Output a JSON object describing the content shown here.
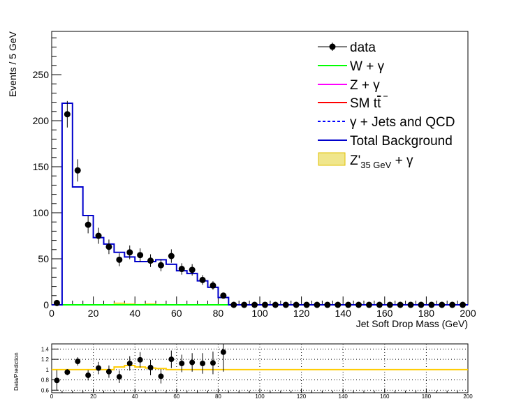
{
  "chart_data": [
    {
      "type": "histogram",
      "xlabel": "Jet Soft Drop Mass (GeV)",
      "ylabel": "Events / 5 GeV",
      "xlim": [
        0,
        200
      ],
      "ylim": [
        0,
        297
      ],
      "x_ticks": [
        0,
        20,
        40,
        60,
        80,
        100,
        120,
        140,
        160,
        180,
        200
      ],
      "y_ticks": [
        0,
        50,
        100,
        150,
        200,
        250
      ],
      "legend_position": "top-right",
      "colors": {
        "data": "#000000",
        "w_gamma": "#00ff00",
        "z_gamma": "#ff00ff",
        "sm_ttbar": "#ff0000",
        "gamma_jets_qcd": "#0000ff",
        "total_background": "#0000cc",
        "signal_fill": "#f0e68c",
        "signal_line": "#ffcc00"
      },
      "legend": {
        "data": "data",
        "w_gamma": "W + γ",
        "z_gamma": "Z + γ",
        "sm_tt": "SM t",
        "gamma_jets_qcd": "γ + Jets and QCD",
        "total_background": "Total Background",
        "signal_main": "Z'",
        "signal_sub": "35 GeV",
        "signal_tail": " + γ"
      },
      "bin_edges": [
        0,
        5,
        10,
        15,
        20,
        25,
        30,
        35,
        40,
        45,
        50,
        55,
        60,
        65,
        70,
        75,
        80,
        85,
        90,
        95,
        100,
        105,
        110,
        115,
        120,
        125,
        130,
        135,
        140,
        145,
        150,
        155,
        160,
        165,
        170,
        175,
        180,
        185,
        190,
        195,
        200
      ],
      "series": [
        {
          "name": "data",
          "style": "points",
          "x": [
            2.5,
            7.5,
            12.5,
            17.5,
            22.5,
            27.5,
            32.5,
            37.5,
            42.5,
            47.5,
            52.5,
            57.5,
            62.5,
            67.5,
            72.5,
            77.5,
            82.5,
            87.5,
            92.5,
            97.5,
            102.5,
            107.5,
            112.5,
            117.5,
            122.5,
            127.5,
            132.5,
            137.5,
            142.5,
            147.5,
            152.5,
            157.5,
            162.5,
            167.5,
            172.5,
            177.5,
            182.5,
            187.5,
            192.5,
            197.5
          ],
          "values": [
            2,
            207,
            146,
            87,
            75,
            63,
            49,
            57,
            54,
            48,
            43,
            53,
            39,
            38,
            27,
            21,
            10,
            0,
            0,
            0,
            0,
            0,
            0,
            0,
            0,
            0,
            0,
            0,
            0,
            0,
            0,
            0,
            0,
            0,
            0,
            0,
            0,
            0,
            0,
            0
          ],
          "errors": [
            1.4,
            14.4,
            12.1,
            9.3,
            8.7,
            7.9,
            7.0,
            7.5,
            7.3,
            6.9,
            6.6,
            7.3,
            6.2,
            6.2,
            5.2,
            4.6,
            3.2,
            0,
            0,
            0,
            0,
            0,
            0,
            0,
            0,
            0,
            0,
            0,
            0,
            0,
            0,
            0,
            0,
            0,
            0,
            0,
            0,
            0,
            0,
            0
          ]
        },
        {
          "name": "Total Background",
          "style": "step",
          "values": [
            0,
            219,
            128,
            97,
            73,
            66,
            57,
            52,
            47,
            47,
            49,
            44,
            37,
            34,
            26,
            19,
            8,
            0,
            0,
            0,
            0,
            0,
            0,
            0,
            0,
            0,
            0,
            0,
            0,
            0,
            0,
            0,
            0,
            0,
            0,
            0,
            0,
            0,
            0,
            0
          ]
        },
        {
          "name": "W + γ",
          "style": "step",
          "values": [
            0,
            0,
            0,
            0,
            0,
            0,
            0,
            0,
            0,
            0,
            0,
            0,
            0,
            0,
            0,
            0,
            0,
            0,
            0,
            0,
            0,
            0,
            0,
            0,
            0,
            0,
            0,
            0,
            0,
            0,
            0,
            0,
            0,
            0,
            0,
            0,
            0,
            0,
            0,
            0
          ]
        },
        {
          "name": "Z' 35 GeV + γ",
          "style": "filled-step",
          "values": [
            0,
            0,
            0,
            0,
            0,
            0,
            2,
            1,
            0.5,
            1,
            0.5,
            0,
            0,
            0,
            0,
            0,
            0,
            0,
            0,
            0,
            0,
            0,
            0,
            0,
            0,
            0,
            0,
            0,
            0,
            0,
            0,
            0,
            0,
            0,
            0,
            0,
            0,
            0,
            0,
            0
          ]
        }
      ]
    },
    {
      "type": "ratio",
      "ylabel": "Data/Prediction",
      "xlim": [
        0,
        200
      ],
      "ylim": [
        0.55,
        1.5
      ],
      "x_ticks": [
        0,
        20,
        40,
        60,
        80,
        100,
        120,
        140,
        160,
        180,
        200
      ],
      "y_ticks": [
        0.6,
        0.8,
        1,
        1.2,
        1.4
      ],
      "reference_line": 1,
      "points": {
        "x": [
          2.5,
          7.5,
          12.5,
          17.5,
          22.5,
          27.5,
          32.5,
          37.5,
          42.5,
          47.5,
          52.5,
          57.5,
          62.5,
          67.5,
          72.5,
          77.5,
          82.5
        ],
        "values": [
          0.79,
          0.95,
          1.16,
          0.89,
          1.03,
          0.96,
          0.86,
          1.12,
          1.19,
          1.04,
          0.87,
          1.2,
          1.12,
          1.14,
          1.12,
          1.13,
          1.34
        ],
        "errors": [
          0.2,
          0.06,
          0.08,
          0.1,
          0.12,
          0.12,
          0.12,
          0.14,
          0.15,
          0.15,
          0.14,
          0.17,
          0.17,
          0.18,
          0.2,
          0.22,
          0.38
        ]
      },
      "band": {
        "values": [
          1,
          1,
          1,
          1,
          1,
          1,
          1.05,
          1.08,
          1.05,
          1.03,
          1.02,
          1,
          1,
          1,
          1,
          1,
          1,
          1,
          1,
          1,
          1,
          1,
          1,
          1,
          1,
          1,
          1,
          1,
          1,
          1,
          1,
          1,
          1,
          1,
          1,
          1,
          1,
          1,
          1,
          1
        ]
      }
    }
  ]
}
